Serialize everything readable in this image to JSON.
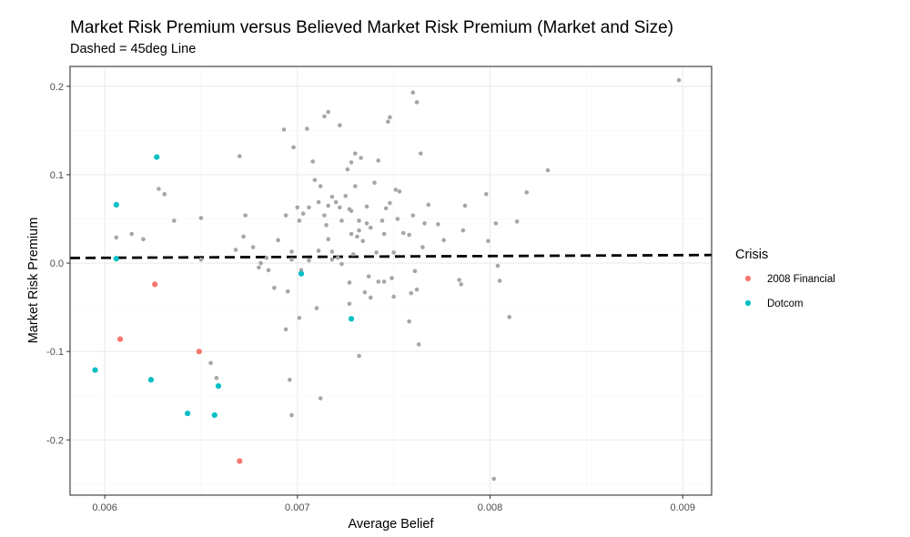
{
  "colors": {
    "background": "#ffffff",
    "grid_major": "#ebebeb",
    "grid_minor": "#f5f5f5",
    "panel_border": "#333333",
    "neutral_points": "#a6a6a6",
    "financial_2008": "#f8766d",
    "dotcom": "#00bfc4",
    "reference_line": "#000000"
  },
  "chart_data": {
    "type": "scatter",
    "title": "Market Risk Premium versus Believed Market Risk Premium (Market and Size)",
    "subtitle": "Dashed = 45deg Line",
    "xlabel": "Average Belief",
    "ylabel": "Market Risk Premium",
    "xlim": [
      0.00582,
      0.00915
    ],
    "ylim": [
      -0.2625,
      0.2225
    ],
    "x_ticks": [
      0.006,
      0.007,
      0.008,
      0.009
    ],
    "x_tick_labels": [
      "0.006",
      "0.007",
      "0.008",
      "0.009"
    ],
    "y_ticks": [
      -0.2,
      -0.1,
      0.0,
      0.1,
      0.2
    ],
    "y_tick_labels": [
      "-0.2",
      "-0.1",
      "0.0",
      "0.1",
      "0.2"
    ],
    "grid": true,
    "reference_line": {
      "style": "dashed",
      "slope": 1,
      "intercept": 0
    },
    "legend": {
      "title": "Crisis",
      "placement": "right",
      "entries": [
        "2008 Financial",
        "Dotcom"
      ]
    },
    "series": [
      {
        "name": "",
        "color": "#a6a6a6",
        "points": [
          [
            0.00606,
            0.029
          ],
          [
            0.00614,
            0.033
          ],
          [
            0.0062,
            0.027
          ],
          [
            0.00628,
            0.084
          ],
          [
            0.00631,
            0.078
          ],
          [
            0.00636,
            0.048
          ],
          [
            0.0065,
            0.051
          ],
          [
            0.0065,
            0.004
          ],
          [
            0.00655,
            -0.113
          ],
          [
            0.00658,
            -0.13
          ],
          [
            0.0067,
            0.121
          ],
          [
            0.00673,
            0.054
          ],
          [
            0.00672,
            0.03
          ],
          [
            0.00668,
            0.015
          ],
          [
            0.00677,
            0.018
          ],
          [
            0.0068,
            -0.005
          ],
          [
            0.00681,
            0.0
          ],
          [
            0.00684,
            0.006
          ],
          [
            0.00685,
            -0.008
          ],
          [
            0.0069,
            0.026
          ],
          [
            0.00688,
            -0.028
          ],
          [
            0.00693,
            0.151
          ],
          [
            0.00695,
            -0.032
          ],
          [
            0.00694,
            -0.075
          ],
          [
            0.00694,
            0.054
          ],
          [
            0.00697,
            0.013
          ],
          [
            0.00697,
            0.004
          ],
          [
            0.00698,
            0.131
          ],
          [
            0.007,
            0.063
          ],
          [
            0.00701,
            0.048
          ],
          [
            0.00701,
            -0.062
          ],
          [
            0.00696,
            -0.132
          ],
          [
            0.00697,
            -0.172
          ],
          [
            0.00702,
            -0.008
          ],
          [
            0.00703,
            0.056
          ],
          [
            0.00705,
            0.152
          ],
          [
            0.00706,
            0.063
          ],
          [
            0.00706,
            0.003
          ],
          [
            0.00708,
            0.115
          ],
          [
            0.00709,
            0.094
          ],
          [
            0.0071,
            -0.051
          ],
          [
            0.00711,
            0.069
          ],
          [
            0.00711,
            0.014
          ],
          [
            0.00712,
            0.087
          ],
          [
            0.00712,
            -0.153
          ],
          [
            0.00714,
            0.166
          ],
          [
            0.00714,
            0.054
          ],
          [
            0.00715,
            0.043
          ],
          [
            0.00716,
            0.171
          ],
          [
            0.00716,
            0.065
          ],
          [
            0.00716,
            0.027
          ],
          [
            0.00718,
            0.075
          ],
          [
            0.00718,
            0.013
          ],
          [
            0.00718,
            0.004
          ],
          [
            0.0072,
            0.069
          ],
          [
            0.00721,
            0.006
          ],
          [
            0.00722,
            0.156
          ],
          [
            0.00722,
            0.063
          ],
          [
            0.00723,
            0.048
          ],
          [
            0.00723,
            -0.001
          ],
          [
            0.00725,
            0.076
          ],
          [
            0.00726,
            0.106
          ],
          [
            0.00727,
            -0.046
          ],
          [
            0.00727,
            -0.022
          ],
          [
            0.00727,
            0.061
          ],
          [
            0.00728,
            0.114
          ],
          [
            0.00728,
            0.059
          ],
          [
            0.00728,
            0.033
          ],
          [
            0.00729,
            0.01
          ],
          [
            0.0073,
            0.124
          ],
          [
            0.0073,
            0.087
          ],
          [
            0.00731,
            0.03
          ],
          [
            0.00732,
            0.048
          ],
          [
            0.00732,
            0.037
          ],
          [
            0.00732,
            -0.105
          ],
          [
            0.00733,
            0.119
          ],
          [
            0.00734,
            0.025
          ],
          [
            0.00735,
            -0.033
          ],
          [
            0.00736,
            0.064
          ],
          [
            0.00736,
            0.045
          ],
          [
            0.00737,
            -0.015
          ],
          [
            0.00738,
            0.04
          ],
          [
            0.00738,
            -0.039
          ],
          [
            0.0074,
            0.091
          ],
          [
            0.00741,
            0.012
          ],
          [
            0.00742,
            0.116
          ],
          [
            0.00742,
            -0.021
          ],
          [
            0.00744,
            0.048
          ],
          [
            0.00745,
            -0.021
          ],
          [
            0.00745,
            0.033
          ],
          [
            0.00746,
            0.062
          ],
          [
            0.00747,
            0.16
          ],
          [
            0.00748,
            0.165
          ],
          [
            0.00748,
            0.068
          ],
          [
            0.00749,
            -0.017
          ],
          [
            0.0075,
            0.012
          ],
          [
            0.0075,
            -0.038
          ],
          [
            0.00751,
            0.083
          ],
          [
            0.00752,
            0.05
          ],
          [
            0.00753,
            0.081
          ],
          [
            0.00755,
            0.034
          ],
          [
            0.00758,
            -0.066
          ],
          [
            0.00758,
            0.032
          ],
          [
            0.00759,
            -0.034
          ],
          [
            0.0076,
            0.193
          ],
          [
            0.0076,
            0.054
          ],
          [
            0.00761,
            -0.009
          ],
          [
            0.00762,
            0.182
          ],
          [
            0.00762,
            -0.03
          ],
          [
            0.00763,
            -0.092
          ],
          [
            0.00764,
            0.124
          ],
          [
            0.00765,
            0.018
          ],
          [
            0.00766,
            0.045
          ],
          [
            0.00768,
            0.066
          ],
          [
            0.00773,
            0.044
          ],
          [
            0.00776,
            0.026
          ],
          [
            0.00784,
            -0.019
          ],
          [
            0.00785,
            -0.024
          ],
          [
            0.00786,
            0.037
          ],
          [
            0.00787,
            0.065
          ],
          [
            0.00798,
            0.078
          ],
          [
            0.00799,
            0.025
          ],
          [
            0.00802,
            -0.244
          ],
          [
            0.00803,
            0.045
          ],
          [
            0.00804,
            -0.003
          ],
          [
            0.00805,
            -0.02
          ],
          [
            0.0081,
            -0.061
          ],
          [
            0.00814,
            0.047
          ],
          [
            0.00819,
            0.08
          ],
          [
            0.0083,
            0.105
          ],
          [
            0.00898,
            0.207
          ]
        ]
      },
      {
        "name": "2008 Financial",
        "color": "#f8766d",
        "points": [
          [
            0.00608,
            -0.086
          ],
          [
            0.00626,
            -0.024
          ],
          [
            0.00649,
            -0.1
          ],
          [
            0.0067,
            -0.224
          ]
        ]
      },
      {
        "name": "Dotcom",
        "color": "#00bfc4",
        "points": [
          [
            0.00595,
            -0.121
          ],
          [
            0.00606,
            0.066
          ],
          [
            0.00606,
            0.005
          ],
          [
            0.00624,
            -0.132
          ],
          [
            0.00627,
            0.12
          ],
          [
            0.00643,
            -0.17
          ],
          [
            0.00657,
            -0.172
          ],
          [
            0.00659,
            -0.139
          ],
          [
            0.00702,
            -0.012
          ],
          [
            0.00728,
            -0.063
          ]
        ]
      }
    ]
  }
}
